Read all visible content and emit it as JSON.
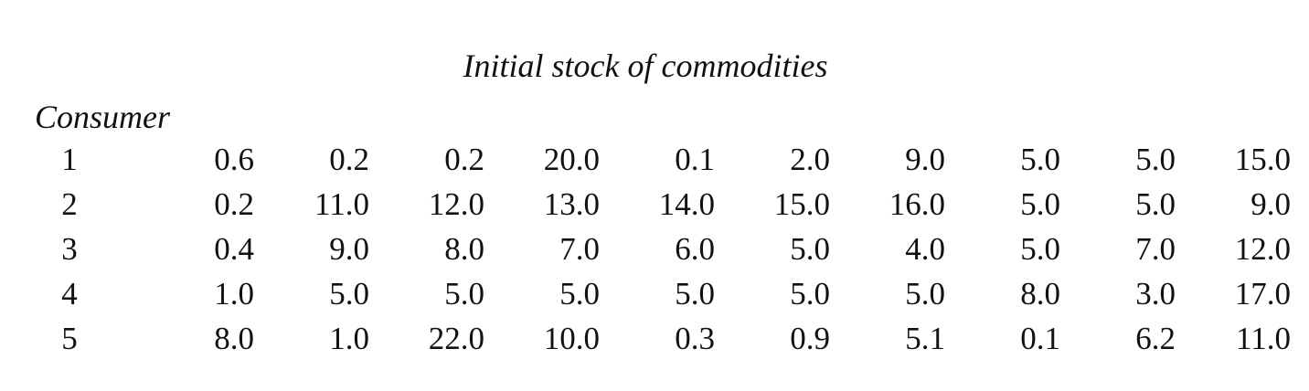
{
  "title": "Initial stock of commodities",
  "row_header": "Consumer",
  "rows": [
    {
      "consumer": "1",
      "values": [
        "0.6",
        "0.2",
        "0.2",
        "20.0",
        "0.1",
        "2.0",
        "9.0",
        "5.0",
        "5.0",
        "15.0"
      ]
    },
    {
      "consumer": "2",
      "values": [
        "0.2",
        "11.0",
        "12.0",
        "13.0",
        "14.0",
        "15.0",
        "16.0",
        "5.0",
        "5.0",
        "9.0"
      ]
    },
    {
      "consumer": "3",
      "values": [
        "0.4",
        "9.0",
        "8.0",
        "7.0",
        "6.0",
        "5.0",
        "4.0",
        "5.0",
        "7.0",
        "12.0"
      ]
    },
    {
      "consumer": "4",
      "values": [
        "1.0",
        "5.0",
        "5.0",
        "5.0",
        "5.0",
        "5.0",
        "5.0",
        "8.0",
        "3.0",
        "17.0"
      ]
    },
    {
      "consumer": "5",
      "values": [
        "8.0",
        "1.0",
        "22.0",
        "10.0",
        "0.3",
        "0.9",
        "5.1",
        "0.1",
        "6.2",
        "11.0"
      ]
    }
  ]
}
